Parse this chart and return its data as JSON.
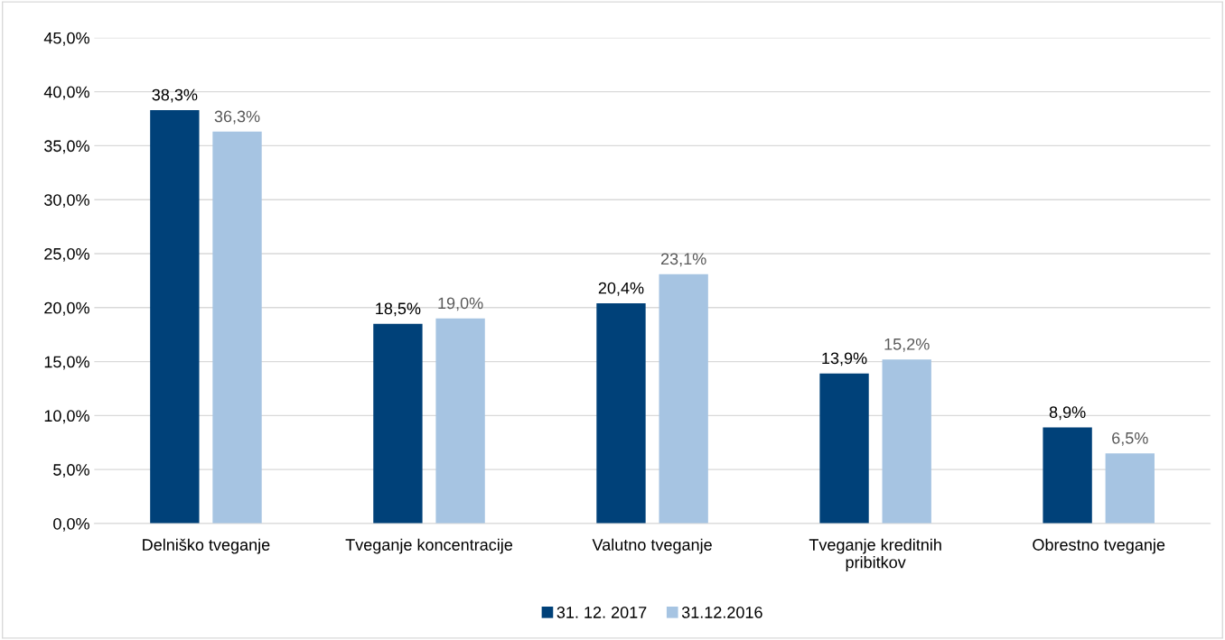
{
  "chart_data": {
    "type": "bar",
    "categories": [
      "Delniško tveganje",
      "Tveganje koncentracije",
      "Valutno tveganje",
      "Tveganje kreditnih\npribitkov",
      "Obrestno tveganje"
    ],
    "series": [
      {
        "name": "31. 12. 2017",
        "color": "#004179",
        "values": [
          38.3,
          18.5,
          20.4,
          13.9,
          8.9
        ],
        "value_labels": [
          "38,3%",
          "18,5%",
          "20,4%",
          "13,9%",
          "8,9%"
        ]
      },
      {
        "name": "31.12.2016",
        "color": "#a6c4e2",
        "values": [
          36.3,
          19.0,
          23.1,
          15.2,
          6.5
        ],
        "value_labels": [
          "36,3%",
          "19,0%",
          "23,1%",
          "15,2%",
          "6,5%"
        ]
      }
    ],
    "ylim": [
      0,
      45
    ],
    "yticks": [
      {
        "value": 0,
        "label": "0,0%"
      },
      {
        "value": 5,
        "label": "5,0%"
      },
      {
        "value": 10,
        "label": "10,0%"
      },
      {
        "value": 15,
        "label": "15,0%"
      },
      {
        "value": 20,
        "label": "20,0%"
      },
      {
        "value": 25,
        "label": "25,0%"
      },
      {
        "value": 30,
        "label": "30,0%"
      },
      {
        "value": 35,
        "label": "35,0%"
      },
      {
        "value": 40,
        "label": "40,0%"
      },
      {
        "value": 45,
        "label": "45,0%"
      }
    ],
    "grid": "y",
    "legend": "bottom"
  }
}
